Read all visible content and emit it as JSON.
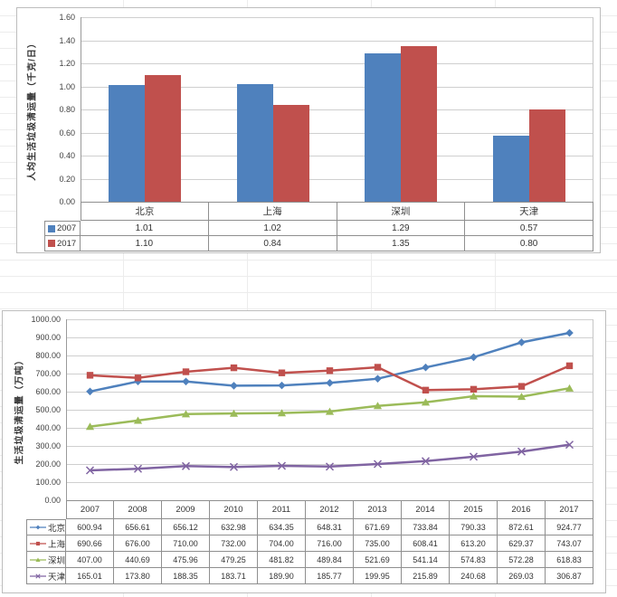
{
  "colors": {
    "beijing_blue": "#4F81BD",
    "shanghai_red": "#C0504D",
    "shenzhen_green": "#9BBB59",
    "tianjin_purple": "#8064A2",
    "gridline": "#cfcfcf",
    "axis_line": "#9a9a9a",
    "table_border": "#8f8f8f",
    "chart_border": "#bdbdbd"
  },
  "chart_data": [
    {
      "type": "bar",
      "title": "",
      "xlabel": "",
      "ylabel": "人均生活垃圾清运量（千克/日）",
      "categories": [
        "北京",
        "上海",
        "深圳",
        "天津"
      ],
      "series": [
        {
          "name": "2007",
          "color": "#4F81BD",
          "values": [
            1.01,
            1.02,
            1.29,
            0.57
          ]
        },
        {
          "name": "2017",
          "color": "#C0504D",
          "values": [
            1.1,
            0.84,
            1.35,
            0.8
          ]
        }
      ],
      "ylim": [
        0,
        1.6
      ],
      "ytick_step": 0.2,
      "yticks": [
        "1.60",
        "1.40",
        "1.20",
        "1.00",
        "0.80",
        "0.60",
        "0.40",
        "0.20",
        "0.00"
      ],
      "grid": true,
      "legend_position": "data-table",
      "data_table": true
    },
    {
      "type": "line",
      "title": "",
      "xlabel": "",
      "ylabel": "生活垃圾清运量（万吨）",
      "categories": [
        "2007",
        "2008",
        "2009",
        "2010",
        "2011",
        "2012",
        "2013",
        "2014",
        "2015",
        "2016",
        "2017"
      ],
      "series": [
        {
          "name": "北京",
          "color": "#4F81BD",
          "marker": "diamond",
          "values": [
            600.94,
            656.61,
            656.12,
            632.98,
            634.35,
            648.31,
            671.69,
            733.84,
            790.33,
            872.61,
            924.77
          ]
        },
        {
          "name": "上海",
          "color": "#C0504D",
          "marker": "square",
          "values": [
            690.66,
            676.0,
            710.0,
            732.0,
            704.0,
            716.0,
            735.0,
            608.41,
            613.2,
            629.37,
            743.07
          ]
        },
        {
          "name": "深圳",
          "color": "#9BBB59",
          "marker": "triangle",
          "values": [
            407.0,
            440.69,
            475.96,
            479.25,
            481.82,
            489.84,
            521.69,
            541.14,
            574.83,
            572.28,
            618.83
          ]
        },
        {
          "name": "天津",
          "color": "#8064A2",
          "marker": "x",
          "values": [
            165.01,
            173.8,
            188.35,
            183.71,
            189.9,
            185.77,
            199.95,
            215.89,
            240.68,
            269.03,
            306.87
          ]
        }
      ],
      "ylim": [
        0,
        1000
      ],
      "ytick_step": 100,
      "yticks": [
        "1000.00",
        "900.00",
        "800.00",
        "700.00",
        "600.00",
        "500.00",
        "400.00",
        "300.00",
        "200.00",
        "100.00",
        "0.00"
      ],
      "grid": true,
      "legend_position": "data-table",
      "data_table": true
    }
  ]
}
